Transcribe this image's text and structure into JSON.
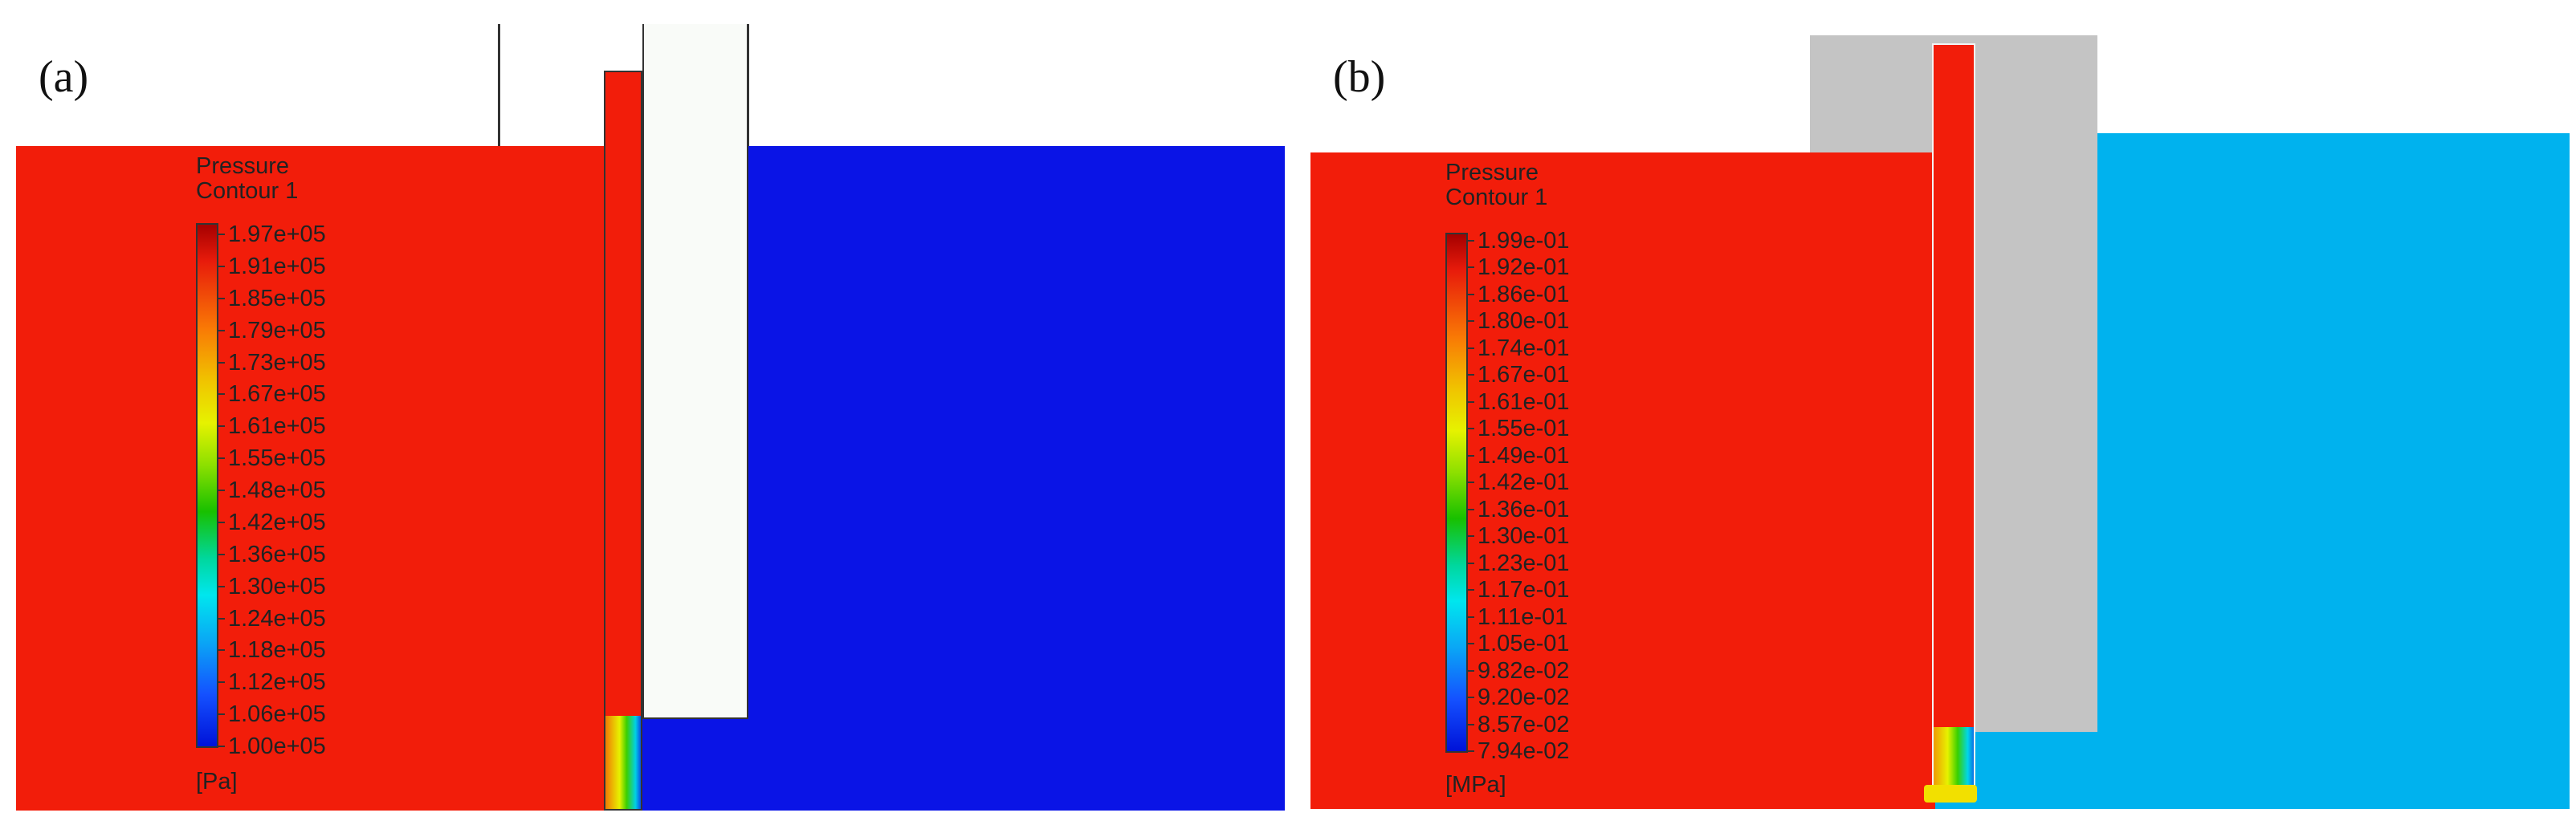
{
  "panels": {
    "a": {
      "label": "(a)",
      "legend_title_line1": "Pressure",
      "legend_title_line2": "Contour 1",
      "ticks": [
        "1.97e+05",
        "1.91e+05",
        "1.85e+05",
        "1.79e+05",
        "1.73e+05",
        "1.67e+05",
        "1.61e+05",
        "1.55e+05",
        "1.48e+05",
        "1.42e+05",
        "1.36e+05",
        "1.30e+05",
        "1.24e+05",
        "1.18e+05",
        "1.12e+05",
        "1.06e+05",
        "1.00e+05"
      ],
      "unit": "[Pa]"
    },
    "b": {
      "label": "(b)",
      "legend_title_line1": "Pressure",
      "legend_title_line2": "Contour 1",
      "ticks": [
        "1.99e-01",
        "1.92e-01",
        "1.86e-01",
        "1.80e-01",
        "1.74e-01",
        "1.67e-01",
        "1.61e-01",
        "1.55e-01",
        "1.49e-01",
        "1.42e-01",
        "1.36e-01",
        "1.30e-01",
        "1.23e-01",
        "1.17e-01",
        "1.11e-01",
        "1.05e-01",
        "9.82e-02",
        "9.20e-02",
        "8.57e-02",
        "7.94e-02"
      ],
      "unit": "[MPa]"
    }
  },
  "colors": {
    "high_pressure": "#f21d0a",
    "low_pressure_a": "#0a14e6",
    "low_pressure_b": "#00b2ee",
    "solid_gray": "#c4c4c4"
  }
}
